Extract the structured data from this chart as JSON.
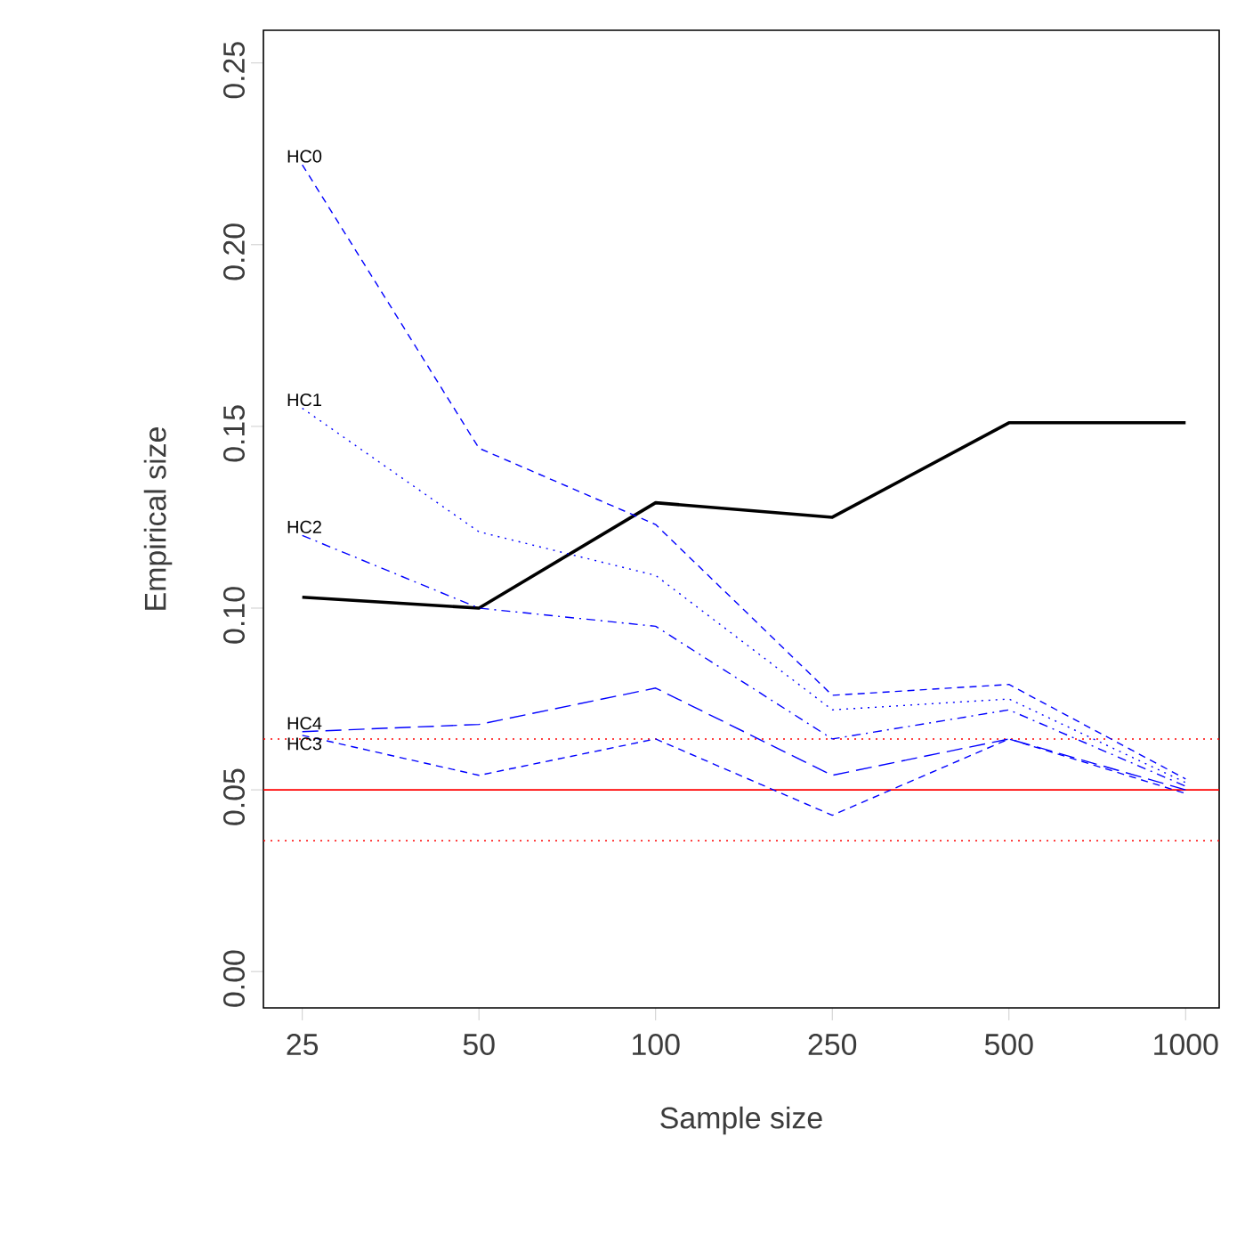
{
  "chart_data": {
    "type": "line",
    "xlabel": "Sample size",
    "ylabel": "Empirical size",
    "categories": [
      "25",
      "50",
      "100",
      "250",
      "500",
      "1000"
    ],
    "ylim": [
      -0.01,
      0.259
    ],
    "yticks": [
      {
        "value": 0,
        "label": "0.00"
      },
      {
        "value": 0.05,
        "label": "0.05"
      },
      {
        "value": 0.1,
        "label": "0.10"
      },
      {
        "value": 0.15,
        "label": "0.15"
      },
      {
        "value": 0.2,
        "label": "0.20"
      },
      {
        "value": 0.25,
        "label": "0.25"
      }
    ],
    "grid": false,
    "legend": false,
    "marker": "none",
    "series": [
      {
        "color": "#000000",
        "line_style": "solid",
        "values": [
          0.103,
          0.1,
          0.129,
          0.125,
          0.151,
          0.151
        ]
      },
      {
        "name": "HC0",
        "color": "#0000ff",
        "line_style": "dashed",
        "values": [
          0.222,
          0.144,
          0.123,
          0.076,
          0.079,
          0.053
        ]
      },
      {
        "name": "HC1",
        "color": "#0000ff",
        "line_style": "dotted",
        "values": [
          0.155,
          0.121,
          0.109,
          0.072,
          0.075,
          0.052
        ]
      },
      {
        "name": "HC2",
        "color": "#0000ff",
        "line_style": "dashdot",
        "values": [
          0.12,
          0.1,
          0.095,
          0.064,
          0.072,
          0.051
        ]
      },
      {
        "name": "HC3",
        "color": "#0000ff",
        "line_style": "dashed",
        "values": [
          0.065,
          0.054,
          0.064,
          0.043,
          0.064,
          0.049
        ]
      },
      {
        "name": "HC4",
        "color": "#0000ff",
        "line_style": "longdash",
        "values": [
          0.066,
          0.068,
          0.078,
          0.054,
          0.064,
          0.05
        ]
      }
    ],
    "ref_lines": [
      {
        "axis": "y",
        "value": 0.05,
        "color": "#ff0000",
        "line_style": "solid"
      },
      {
        "axis": "y",
        "value": 0.064,
        "color": "#ff0000",
        "line_style": "dotted"
      },
      {
        "axis": "y",
        "value": 0.036,
        "color": "#ff0000",
        "line_style": "dotted"
      }
    ]
  }
}
